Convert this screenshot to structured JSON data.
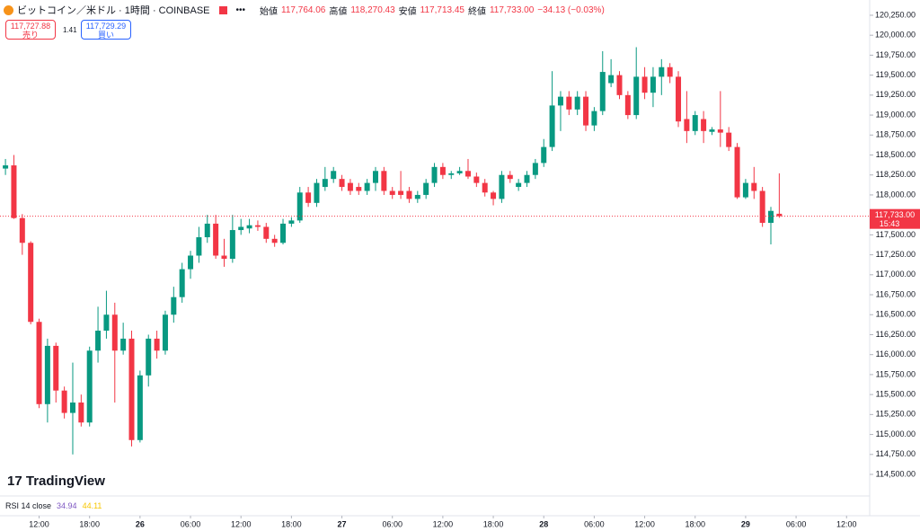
{
  "header": {
    "symbol": "ビットコイン／米ドル · 1時間 · COINBASE",
    "open_label": "始値",
    "open": "117,764.06",
    "high_label": "高値",
    "high": "118,270.43",
    "low_label": "安値",
    "low": "117,713.45",
    "close_label": "終値",
    "close": "117,733.00",
    "change": "−34.13 (−0.03%)",
    "sell_price": "117,727.88",
    "sell_label": "売り",
    "spread": "1.41",
    "buy_price": "117,729.29",
    "buy_label": "買い",
    "logo": "TradingView",
    "indicator": "RSI 14 close",
    "rsi": "34.94",
    "rsi_ma": "44.11"
  },
  "chart_data": {
    "type": "candlestick",
    "up_color": "#089981",
    "down_color": "#f23645",
    "open": [
      118330,
      118370,
      117710,
      117400,
      116410,
      115380,
      116110,
      115550,
      115270,
      115400,
      115150,
      116050,
      116300,
      116500,
      116050,
      116200,
      114930,
      115740,
      116200,
      116050,
      116500,
      116720,
      117070,
      117240,
      117470,
      117640,
      117240,
      117200,
      117560,
      117580,
      117620,
      117600,
      117450,
      117400,
      117640,
      117680,
      118030,
      117900,
      118100,
      118200,
      118200,
      118150,
      118100,
      118050,
      118150,
      118300,
      118050,
      118050,
      118050,
      117950,
      118000,
      118150,
      118350,
      118250,
      118270,
      118300,
      118230,
      118150,
      118030,
      117950,
      118250,
      118100,
      118150,
      118250,
      118400,
      118600,
      119120,
      119230,
      119070,
      119230,
      118870,
      119050,
      119400,
      119500,
      119250,
      119000,
      119480,
      119280,
      119480,
      119600,
      119480,
      118950,
      118800,
      118950,
      118790,
      118820,
      118780,
      118600,
      117970,
      118150,
      118050,
      117650,
      117764.06
    ],
    "high": [
      118450,
      118500,
      117760,
      117420,
      116450,
      116200,
      116150,
      115600,
      115900,
      115500,
      116100,
      116600,
      116800,
      116650,
      116400,
      116300,
      115800,
      116250,
      116300,
      116550,
      116850,
      117150,
      117300,
      117600,
      117750,
      117750,
      117450,
      117750,
      117700,
      117700,
      117680,
      117650,
      117500,
      117700,
      117720,
      118100,
      118100,
      118200,
      118350,
      118350,
      118250,
      118200,
      118150,
      118200,
      118350,
      118350,
      118100,
      118300,
      118100,
      118050,
      118200,
      118400,
      118400,
      118300,
      118350,
      118450,
      118280,
      118200,
      118050,
      118300,
      118300,
      118200,
      118300,
      118450,
      118700,
      119550,
      119300,
      119300,
      119300,
      119300,
      119100,
      119800,
      119700,
      119550,
      119300,
      119850,
      119600,
      119600,
      119700,
      119650,
      119550,
      119300,
      119050,
      119050,
      118850,
      119300,
      118850,
      118650,
      118200,
      118350,
      118100,
      117850,
      118270.43
    ],
    "low": [
      118250,
      117700,
      117250,
      116380,
      115330,
      115150,
      115400,
      115200,
      114750,
      115100,
      115100,
      115900,
      116200,
      115400,
      116000,
      114850,
      114900,
      115600,
      115950,
      116000,
      116400,
      116650,
      116950,
      117150,
      117400,
      117200,
      117100,
      117150,
      117500,
      117520,
      117550,
      117400,
      117350,
      117380,
      117600,
      117650,
      117850,
      117850,
      118050,
      118150,
      118050,
      118000,
      118000,
      118000,
      118050,
      118000,
      117950,
      117950,
      117900,
      117900,
      117950,
      118100,
      118200,
      118200,
      118250,
      118200,
      118100,
      117980,
      117870,
      117900,
      118150,
      118050,
      118100,
      118200,
      118350,
      118550,
      118800,
      119000,
      119000,
      118800,
      118800,
      119000,
      119350,
      119200,
      118950,
      118950,
      119200,
      119100,
      119250,
      119400,
      118850,
      118650,
      118750,
      118650,
      118750,
      118600,
      118550,
      117950,
      117950,
      117950,
      117600,
      117380,
      117713.45
    ],
    "close": [
      118370,
      117710,
      117400,
      116410,
      115380,
      116110,
      115550,
      115270,
      115400,
      115150,
      116050,
      116300,
      116500,
      116050,
      116200,
      114930,
      115740,
      116200,
      116050,
      116500,
      116720,
      117070,
      117240,
      117470,
      117640,
      117240,
      117200,
      117560,
      117600,
      117620,
      117600,
      117450,
      117400,
      117640,
      117680,
      118030,
      117900,
      118150,
      118200,
      118300,
      118100,
      118050,
      118050,
      118150,
      118300,
      118050,
      118000,
      118000,
      117950,
      118000,
      118150,
      118350,
      118250,
      118270,
      118300,
      118230,
      118150,
      118030,
      117950,
      118250,
      118200,
      118150,
      118250,
      118400,
      118600,
      119120,
      119230,
      119070,
      119230,
      118870,
      119050,
      119540,
      119500,
      119250,
      119000,
      119480,
      119280,
      119480,
      119600,
      119480,
      118920,
      118800,
      119000,
      118800,
      118820,
      118780,
      118600,
      117970,
      118150,
      118050,
      117650,
      117800,
      117733.0
    ],
    "last_price_label": "117,733.00",
    "countdown": "15:43",
    "ylim": [
      114230,
      120441
    ],
    "yticks": [
      {
        "value": 114500,
        "label": "114,500.00"
      },
      {
        "value": 114750,
        "label": "114,750.00"
      },
      {
        "value": 115000,
        "label": "115,000.00"
      },
      {
        "value": 115250,
        "label": "115,250.00"
      },
      {
        "value": 115500,
        "label": "115,500.00"
      },
      {
        "value": 115750,
        "label": "115,750.00"
      },
      {
        "value": 116000,
        "label": "116,000.00"
      },
      {
        "value": 116250,
        "label": "116,250.00"
      },
      {
        "value": 116500,
        "label": "116,500.00"
      },
      {
        "value": 116750,
        "label": "116,750.00"
      },
      {
        "value": 117000,
        "label": "117,000.00"
      },
      {
        "value": 117250,
        "label": "117,250.00"
      },
      {
        "value": 117500,
        "label": "117,500.00"
      },
      {
        "value": 117750,
        "label": "117,750.00"
      },
      {
        "value": 118000,
        "label": "118,000.00"
      },
      {
        "value": 118250,
        "label": "118,250.00"
      },
      {
        "value": 118500,
        "label": "118,500.00"
      },
      {
        "value": 118750,
        "label": "118,750.00"
      },
      {
        "value": 119000,
        "label": "119,000.00"
      },
      {
        "value": 119250,
        "label": "119,250.00"
      },
      {
        "value": 119500,
        "label": "119,500.00"
      },
      {
        "value": 119750,
        "label": "119,750.00"
      },
      {
        "value": 120000,
        "label": "120,000.00"
      },
      {
        "value": 120250,
        "label": "120,250.00"
      }
    ],
    "xlim": [
      -0.65,
      102.75
    ],
    "xticks": [
      {
        "value": 4,
        "label": "12:00"
      },
      {
        "value": 10,
        "label": "18:00"
      },
      {
        "value": 16,
        "label": "26"
      },
      {
        "value": 22,
        "label": "06:00"
      },
      {
        "value": 28,
        "label": "12:00"
      },
      {
        "value": 34,
        "label": "18:00"
      },
      {
        "value": 40,
        "label": "27"
      },
      {
        "value": 46,
        "label": "06:00"
      },
      {
        "value": 52,
        "label": "12:00"
      },
      {
        "value": 58,
        "label": "18:00"
      },
      {
        "value": 64,
        "label": "28"
      },
      {
        "value": 70,
        "label": "06:00"
      },
      {
        "value": 76,
        "label": "12:00"
      },
      {
        "value": 82,
        "label": "18:00"
      },
      {
        "value": 88,
        "label": "29"
      },
      {
        "value": 94,
        "label": "06:00"
      },
      {
        "value": 100,
        "label": "12:00"
      }
    ]
  }
}
